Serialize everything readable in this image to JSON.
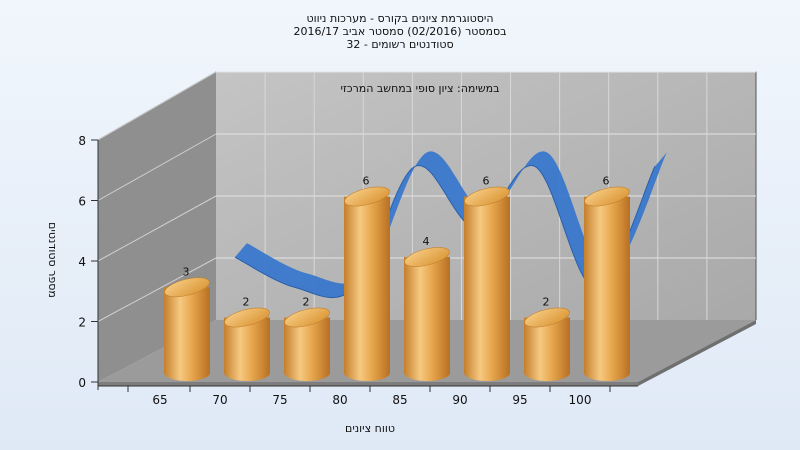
{
  "chart_data": {
    "type": "bar",
    "title_lines": [
      "היסטוגרמת ציונים בקורס - מערכות ניווט",
      "בסמסטר  (02/2016)  סמסטר אביב 2016/17",
      "סטודנטים רשומים - 32"
    ],
    "subtitle": "במשימה: ציון סופי במחשב המרכזי",
    "xlabel": "טווח ציונים",
    "ylabel": "מספר סטודנטים",
    "categories": [
      "65",
      "70",
      "75",
      "80",
      "85",
      "90",
      "95",
      "100"
    ],
    "values": [
      3,
      2,
      2,
      6,
      4,
      6,
      2,
      6
    ],
    "y_ticks": [
      0,
      2,
      4,
      6,
      8
    ],
    "ylim": [
      0,
      8
    ],
    "x_tick_labels": [
      "65",
      "70",
      "75",
      "80",
      "85",
      "90",
      "95",
      "100"
    ],
    "bar_color": "#e8a84e",
    "line_color": "#3a78cc",
    "grid": true
  }
}
